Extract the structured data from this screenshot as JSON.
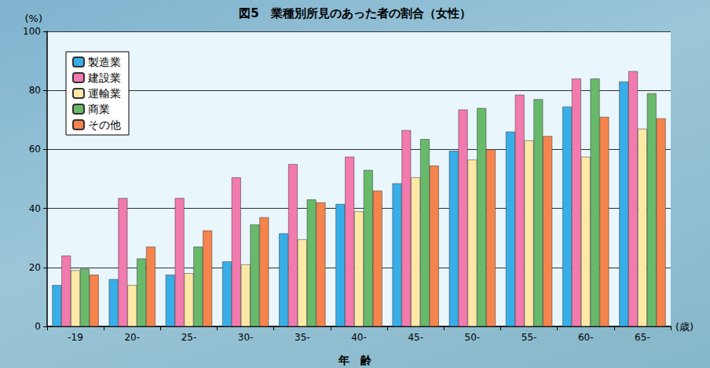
{
  "chart_data": {
    "type": "bar",
    "title": "図5　業種別所見のあった者の割合（女性）",
    "y_label": "(%)",
    "x_label": "年　齢",
    "x_unit": "(歳)",
    "categories": [
      "-19",
      "20-",
      "25-",
      "30-",
      "35-",
      "40-",
      "45-",
      "50-",
      "55-",
      "60-",
      "65-"
    ],
    "series": [
      {
        "name": "製造業",
        "color": "#38aee8",
        "values": [
          14,
          16,
          17.5,
          22,
          31.5,
          41.5,
          48.5,
          59.5,
          66,
          74.5,
          83
        ]
      },
      {
        "name": "建設業",
        "color": "#f27aae",
        "values": [
          24,
          43.5,
          43.5,
          50.5,
          55,
          57.5,
          66.5,
          73.5,
          78.5,
          84,
          86.5
        ]
      },
      {
        "name": "運輸業",
        "color": "#fde8a6",
        "values": [
          19,
          14,
          18,
          21,
          29.5,
          39,
          50.5,
          56.5,
          63,
          57.5,
          67
        ]
      },
      {
        "name": "商業",
        "color": "#68b96a",
        "values": [
          19.5,
          23,
          27,
          34.5,
          43,
          53,
          63.5,
          74,
          77,
          84,
          79
        ]
      },
      {
        "name": "その他",
        "color": "#f5844c",
        "values": [
          17.5,
          27,
          32.5,
          37,
          42,
          46,
          54.5,
          60,
          64.5,
          71,
          70.5
        ]
      }
    ],
    "ylim": [
      0,
      100
    ],
    "yticks": [
      0,
      20,
      40,
      60,
      80,
      100
    ],
    "grid": true,
    "legend": "top-left"
  }
}
